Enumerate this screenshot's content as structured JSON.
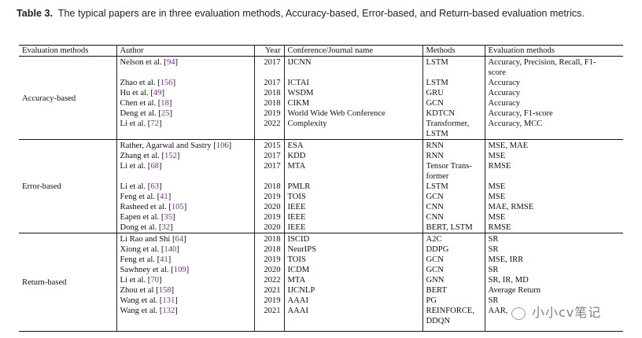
{
  "caption": {
    "label": "Table 3.",
    "text": "The typical papers are in three evaluation methods, Accuracy-based, Error-based, and Return-based evaluation metrics."
  },
  "headers": [
    "Evaluation methods",
    "Author",
    "Year",
    "Conference/Journal name",
    "Methods",
    "Evaluation methods"
  ],
  "colors": {
    "citation": "#7b2f8f",
    "rule": "#111111"
  },
  "groups": [
    {
      "name": "Accuracy-based",
      "rows": [
        {
          "author": "Nelson et al.",
          "cite": "94",
          "year": "2017",
          "venue": "IJCNN",
          "method": "LSTM",
          "eval": "Accuracy, Precision, Recall, F1-\nscore"
        },
        {
          "author": "Zhao et al.",
          "cite": "156",
          "year": "2017",
          "venue": "ICTAI",
          "method": "LSTM",
          "eval": "Accuracy"
        },
        {
          "author": "Hu et al.",
          "cite": "49",
          "year": "2018",
          "venue": "WSDM",
          "method": "GRU",
          "eval": "Accuracy"
        },
        {
          "author": "Chen et al.",
          "cite": "18",
          "year": "2018",
          "venue": "CIKM",
          "method": "GCN",
          "eval": "Accuracy"
        },
        {
          "author": "Deng et al.",
          "cite": "25",
          "year": "2019",
          "venue": "World Wide Web Conference",
          "method": "KDTCN",
          "eval": "Accuracy, F1-score"
        },
        {
          "author": "Li et al.",
          "cite": "72",
          "year": "2022",
          "venue": "Complexity",
          "method": "Transformer,\nLSTM",
          "eval": "Accuracy, MCC"
        }
      ]
    },
    {
      "name": "Error-based",
      "rows": [
        {
          "author": "Rather, Agarwal and Sastry",
          "cite": "106",
          "year": "2015",
          "venue": "ESA",
          "method": "RNN",
          "eval": "MSE, MAE"
        },
        {
          "author": "Zhang et al.",
          "cite": "152",
          "year": "2017",
          "venue": "KDD",
          "method": "RNN",
          "eval": "MSE"
        },
        {
          "author": "Li et al.",
          "cite": "68",
          "year": "2017",
          "venue": "MTA",
          "method": "Tensor Trans-\nformer",
          "eval": "RMSE"
        },
        {
          "author": "Li et al.",
          "cite": "63",
          "year": "2018",
          "venue": "PMLR",
          "method": "LSTM",
          "eval": "MSE"
        },
        {
          "author": "Feng et al.",
          "cite": "41",
          "year": "2019",
          "venue": "TOIS",
          "method": "GCN",
          "eval": "MSE"
        },
        {
          "author": "Rasheed et al.",
          "cite": "105",
          "year": "2020",
          "venue": "IEEE",
          "method": "CNN",
          "eval": "MAE, RMSE"
        },
        {
          "author": "Eapen et al.",
          "cite": "35",
          "year": "2019",
          "venue": "IEEE",
          "method": "CNN",
          "eval": "MSE"
        },
        {
          "author": "Dong et al.",
          "cite": "32",
          "year": "2020",
          "venue": "IEEE",
          "method": "BERT, LSTM",
          "eval": "RMSE"
        }
      ]
    },
    {
      "name": "Return-based",
      "rows": [
        {
          "author": "Li Rao and Shi",
          "cite": "64",
          "year": "2018",
          "venue": "ISCID",
          "method": "A2C",
          "eval": "SR"
        },
        {
          "author": "Xiong et al.",
          "cite": "140",
          "year": "2018",
          "venue": "NeurIPS",
          "method": "DDPG",
          "eval": "SR"
        },
        {
          "author": "Feng et al.",
          "cite": "41",
          "year": "2019",
          "venue": "TOIS",
          "method": "GCN",
          "eval": "MSE, IRR"
        },
        {
          "author": "Sawhney et al.",
          "cite": "109",
          "year": "2020",
          "venue": "ICDM",
          "method": "GCN",
          "eval": "SR"
        },
        {
          "author": "Li et al.",
          "cite": "70",
          "year": "2022",
          "venue": "MTA",
          "method": "GNN",
          "eval": "SR, IR, MD"
        },
        {
          "author": "Zhou et al",
          "cite": "158",
          "year": "2021",
          "venue": "IJCNLP",
          "method": "BERT",
          "eval": "Average Return"
        },
        {
          "author": "Wang et al.",
          "cite": "131",
          "year": "2019",
          "venue": "AAAI",
          "method": "PG",
          "eval": "SR"
        },
        {
          "author": "Wang et al.",
          "cite": "132",
          "year": "2021",
          "venue": "AAAI",
          "method": "REINFORCE,\nDDQN",
          "eval": "AAR,"
        }
      ]
    }
  ],
  "watermark": "小小cv笔记"
}
